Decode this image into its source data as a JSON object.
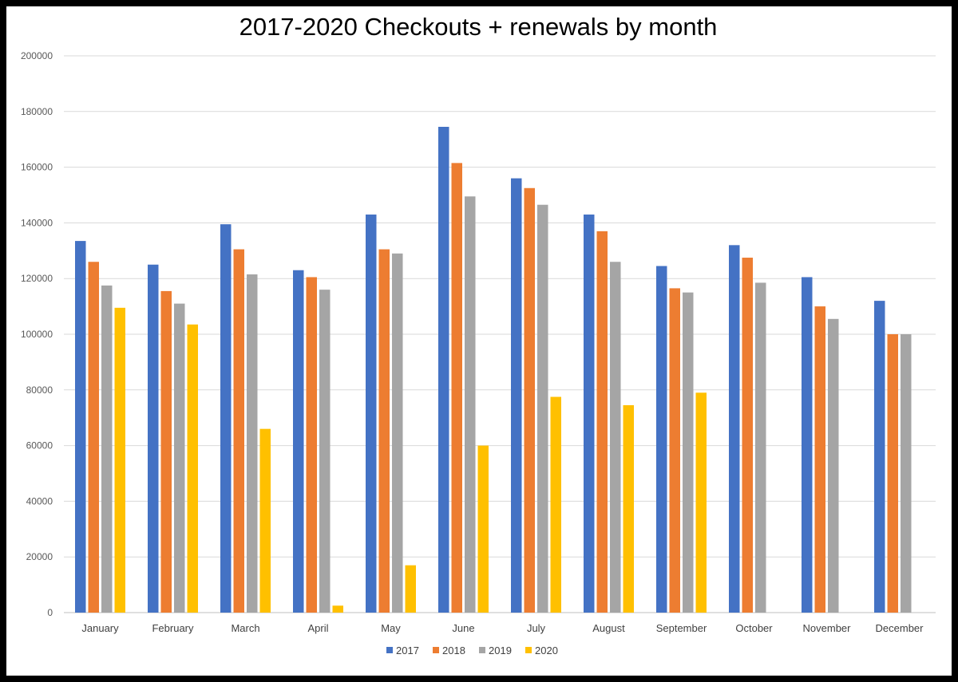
{
  "chart_data": {
    "type": "bar",
    "title": "2017-2020 Checkouts + renewals by month",
    "xlabel": "",
    "ylabel": "",
    "ylim": [
      0,
      200000
    ],
    "yticks": [
      0,
      20000,
      40000,
      60000,
      80000,
      100000,
      120000,
      140000,
      160000,
      180000,
      200000
    ],
    "grid": true,
    "legend_position": "bottom",
    "categories": [
      "January",
      "February",
      "March",
      "April",
      "May",
      "June",
      "July",
      "August",
      "September",
      "October",
      "November",
      "December"
    ],
    "series": [
      {
        "name": "2017",
        "color": "#4472C4",
        "values": [
          133500,
          125000,
          139500,
          123000,
          143000,
          174500,
          156000,
          143000,
          124500,
          132000,
          120500,
          112000
        ]
      },
      {
        "name": "2018",
        "color": "#ED7D31",
        "values": [
          126000,
          115500,
          130500,
          120500,
          130500,
          161500,
          152500,
          137000,
          116500,
          127500,
          110000,
          100000
        ]
      },
      {
        "name": "2019",
        "color": "#A5A5A5",
        "values": [
          117500,
          111000,
          121500,
          116000,
          129000,
          149500,
          146500,
          126000,
          115000,
          118500,
          105500,
          100000
        ]
      },
      {
        "name": "2020",
        "color": "#FFC000",
        "values": [
          109500,
          103500,
          66000,
          2500,
          17000,
          60000,
          77500,
          74500,
          79000,
          null,
          null,
          null
        ]
      }
    ]
  }
}
